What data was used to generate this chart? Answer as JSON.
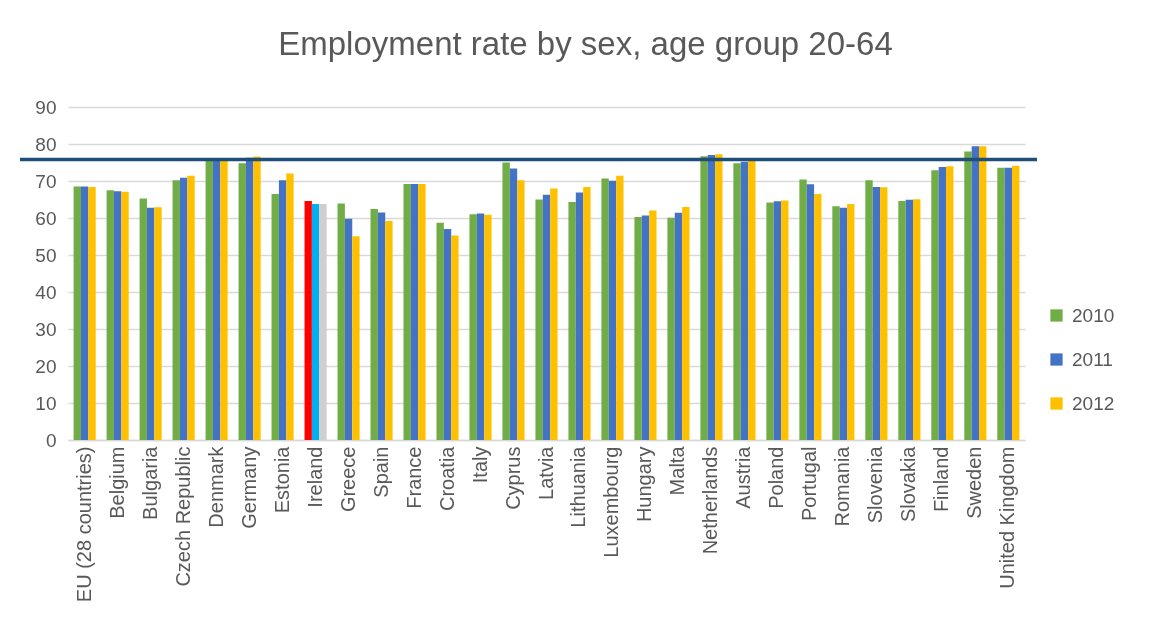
{
  "chart_data": {
    "type": "bar",
    "title": "Employment rate by sex, age group 20-64",
    "categories": [
      "EU (28 countries)",
      "Belgium",
      "Bulgaria",
      "Czech Republic",
      "Denmark",
      "Germany",
      "Estonia",
      "Ireland",
      "Greece",
      "Spain",
      "France",
      "Croatia",
      "Italy",
      "Cyprus",
      "Latvia",
      "Lithuania",
      "Luxembourg",
      "Hungary",
      "Malta",
      "Netherlands",
      "Austria",
      "Poland",
      "Portugal",
      "Romania",
      "Slovenia",
      "Slovakia",
      "Finland",
      "Sweden",
      "United Kingdom"
    ],
    "series": [
      {
        "name": "2010",
        "color": "#70ad47",
        "colors": [
          "#70ad47",
          "#70ad47",
          "#70ad47",
          "#70ad47",
          "#70ad47",
          "#70ad47",
          "#70ad47",
          "#ff0000",
          "#70ad47",
          "#70ad47",
          "#70ad47",
          "#70ad47",
          "#70ad47",
          "#70ad47",
          "#70ad47",
          "#70ad47",
          "#70ad47",
          "#70ad47",
          "#70ad47",
          "#70ad47",
          "#70ad47",
          "#70ad47",
          "#70ad47",
          "#70ad47",
          "#70ad47",
          "#70ad47",
          "#70ad47",
          "#70ad47",
          "#70ad47"
        ],
        "values": [
          68.5,
          67.5,
          65.3,
          70.2,
          75.8,
          74.8,
          66.5,
          64.6,
          63.9,
          62.4,
          69.2,
          58.7,
          61.0,
          75.0,
          65.0,
          64.3,
          70.7,
          60.3,
          60.1,
          76.7,
          74.8,
          64.2,
          70.4,
          63.2,
          70.2,
          64.6,
          72.9,
          78.0,
          73.6
        ]
      },
      {
        "name": "2011",
        "color": "#4472c4",
        "colors": [
          "#4472c4",
          "#4472c4",
          "#4472c4",
          "#4472c4",
          "#4472c4",
          "#4472c4",
          "#4472c4",
          "#00b0f0",
          "#4472c4",
          "#4472c4",
          "#4472c4",
          "#4472c4",
          "#4472c4",
          "#4472c4",
          "#4472c4",
          "#4472c4",
          "#4472c4",
          "#4472c4",
          "#4472c4",
          "#4472c4",
          "#4472c4",
          "#4472c4",
          "#4472c4",
          "#4472c4",
          "#4472c4",
          "#4472c4",
          "#4472c4",
          "#4472c4",
          "#4472c4"
        ],
        "values": [
          68.5,
          67.2,
          62.8,
          70.9,
          75.7,
          76.3,
          70.2,
          63.8,
          59.8,
          61.5,
          69.2,
          57.0,
          61.2,
          73.4,
          66.3,
          66.9,
          70.1,
          60.7,
          61.4,
          77.0,
          75.2,
          64.5,
          69.1,
          62.8,
          68.4,
          64.9,
          73.8,
          79.4,
          73.6
        ]
      },
      {
        "name": "2012",
        "color": "#ffc000",
        "colors": [
          "#ffc000",
          "#ffc000",
          "#ffc000",
          "#ffc000",
          "#ffc000",
          "#ffc000",
          "#ffc000",
          "#d0cece",
          "#ffc000",
          "#ffc000",
          "#ffc000",
          "#ffc000",
          "#ffc000",
          "#ffc000",
          "#ffc000",
          "#ffc000",
          "#ffc000",
          "#ffc000",
          "#ffc000",
          "#ffc000",
          "#ffc000",
          "#ffc000",
          "#ffc000",
          "#ffc000",
          "#ffc000",
          "#ffc000",
          "#ffc000",
          "#ffc000",
          "#ffc000"
        ],
        "values": [
          68.4,
          67.1,
          62.9,
          71.4,
          75.4,
          76.6,
          72.0,
          63.8,
          55.1,
          59.2,
          69.2,
          55.3,
          60.9,
          70.2,
          68.0,
          68.4,
          71.4,
          62.0,
          63.0,
          77.2,
          75.6,
          64.7,
          66.5,
          63.8,
          68.3,
          65.1,
          74.0,
          79.4,
          74.1
        ]
      }
    ],
    "ylim": [
      0,
      90
    ],
    "yticks": [
      0,
      10,
      20,
      30,
      40,
      50,
      60,
      70,
      80,
      90
    ],
    "ref_lines": [
      {
        "axis": "y",
        "value": 75.8,
        "color": "#1f4e79"
      }
    ],
    "grid": "y",
    "legend": "right"
  }
}
